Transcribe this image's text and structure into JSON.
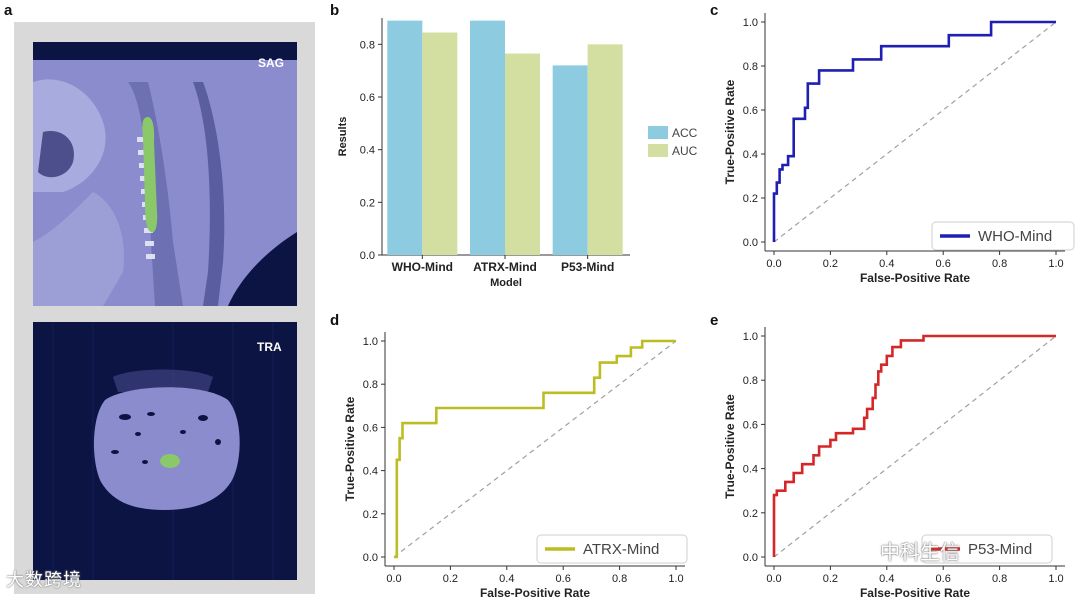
{
  "panels": {
    "a": {
      "letter": "a",
      "sag_label": "SAG",
      "tra_label": "TRA"
    },
    "b": {
      "letter": "b"
    },
    "c": {
      "letter": "c"
    },
    "d": {
      "letter": "d"
    },
    "e": {
      "letter": "e"
    }
  },
  "watermarks": {
    "left": "大数跨境",
    "right": "中科生信"
  },
  "colors": {
    "acc": "#8ccbe0",
    "auc": "#d3dfa0",
    "who": "#1f1fb4",
    "atrx": "#bcbd22",
    "p53": "#d62728",
    "diagonal": "#a0a0a0"
  },
  "chart_data": [
    {
      "id": "b",
      "type": "bar",
      "categories": [
        "WHO-Mind",
        "ATRX-Mind",
        "P53-Mind"
      ],
      "series": [
        {
          "name": "ACC",
          "values": [
            0.89,
            0.89,
            0.72
          ]
        },
        {
          "name": "AUC",
          "values": [
            0.845,
            0.765,
            0.8
          ]
        }
      ],
      "xlabel": "Model",
      "ylabel": "Results",
      "ylim": [
        0,
        0.9
      ],
      "yticks": [
        "0.0",
        "0.2",
        "0.4",
        "0.6",
        "0.8"
      ],
      "legend": "right"
    },
    {
      "id": "c",
      "type": "line",
      "series": [
        {
          "name": "WHO-Mind",
          "x": [
            0,
            0,
            0.01,
            0.01,
            0.02,
            0.02,
            0.03,
            0.03,
            0.05,
            0.05,
            0.07,
            0.07,
            0.11,
            0.11,
            0.12,
            0.12,
            0.16,
            0.16,
            0.28,
            0.28,
            0.38,
            0.38,
            0.62,
            0.62,
            0.77,
            0.77,
            1.0
          ],
          "y": [
            0,
            0.22,
            0.22,
            0.27,
            0.27,
            0.33,
            0.33,
            0.35,
            0.35,
            0.39,
            0.39,
            0.56,
            0.56,
            0.61,
            0.61,
            0.72,
            0.72,
            0.78,
            0.78,
            0.83,
            0.83,
            0.89,
            0.89,
            0.94,
            0.94,
            1.0,
            1.0
          ]
        }
      ],
      "xlabel": "False-Positive Rate",
      "ylabel": "True-Positive Rate",
      "xlim": [
        0,
        1
      ],
      "ylim": [
        0,
        1
      ],
      "ticks": [
        "0.0",
        "0.2",
        "0.4",
        "0.6",
        "0.8",
        "1.0"
      ],
      "legend": "bottom-right"
    },
    {
      "id": "d",
      "type": "line",
      "series": [
        {
          "name": "ATRX-Mind",
          "x": [
            0,
            0.01,
            0.01,
            0.02,
            0.02,
            0.03,
            0.03,
            0.15,
            0.15,
            0.53,
            0.53,
            0.71,
            0.71,
            0.73,
            0.73,
            0.79,
            0.79,
            0.84,
            0.84,
            0.87,
            0.87,
            0.88,
            0.88,
            0.91,
            0.91,
            1.0
          ],
          "y": [
            0,
            0,
            0.45,
            0.45,
            0.55,
            0.55,
            0.62,
            0.62,
            0.69,
            0.69,
            0.76,
            0.76,
            0.83,
            0.83,
            0.9,
            0.9,
            0.93,
            0.93,
            0.97,
            0.97,
            0.97,
            0.97,
            1.0,
            1.0,
            1.0,
            1.0
          ]
        }
      ],
      "xlabel": "False-Positive Rate",
      "ylabel": "True-Positive Rate",
      "xlim": [
        0,
        1
      ],
      "ylim": [
        0,
        1
      ],
      "ticks": [
        "0.0",
        "0.2",
        "0.4",
        "0.6",
        "0.8",
        "1.0"
      ],
      "legend": "bottom-right"
    },
    {
      "id": "e",
      "type": "line",
      "series": [
        {
          "name": "P53-Mind",
          "x": [
            0,
            0,
            0.01,
            0.01,
            0.04,
            0.04,
            0.07,
            0.07,
            0.1,
            0.1,
            0.14,
            0.14,
            0.16,
            0.16,
            0.2,
            0.2,
            0.22,
            0.22,
            0.28,
            0.28,
            0.32,
            0.32,
            0.33,
            0.33,
            0.35,
            0.35,
            0.36,
            0.36,
            0.37,
            0.37,
            0.38,
            0.38,
            0.4,
            0.4,
            0.42,
            0.42,
            0.45,
            0.45,
            0.53,
            0.53,
            1.0
          ],
          "y": [
            0,
            0.28,
            0.28,
            0.3,
            0.3,
            0.34,
            0.34,
            0.38,
            0.38,
            0.42,
            0.42,
            0.46,
            0.46,
            0.5,
            0.5,
            0.53,
            0.53,
            0.56,
            0.56,
            0.58,
            0.58,
            0.63,
            0.63,
            0.67,
            0.67,
            0.72,
            0.72,
            0.78,
            0.78,
            0.84,
            0.84,
            0.87,
            0.87,
            0.91,
            0.91,
            0.95,
            0.95,
            0.98,
            0.98,
            1.0,
            1.0
          ]
        }
      ],
      "xlabel": "False-Positive Rate",
      "ylabel": "True-Positive Rate",
      "xlim": [
        0,
        1
      ],
      "ylim": [
        0,
        1
      ],
      "ticks": [
        "0.0",
        "0.2",
        "0.4",
        "0.6",
        "0.8",
        "1.0"
      ],
      "legend": "bottom-right"
    }
  ]
}
